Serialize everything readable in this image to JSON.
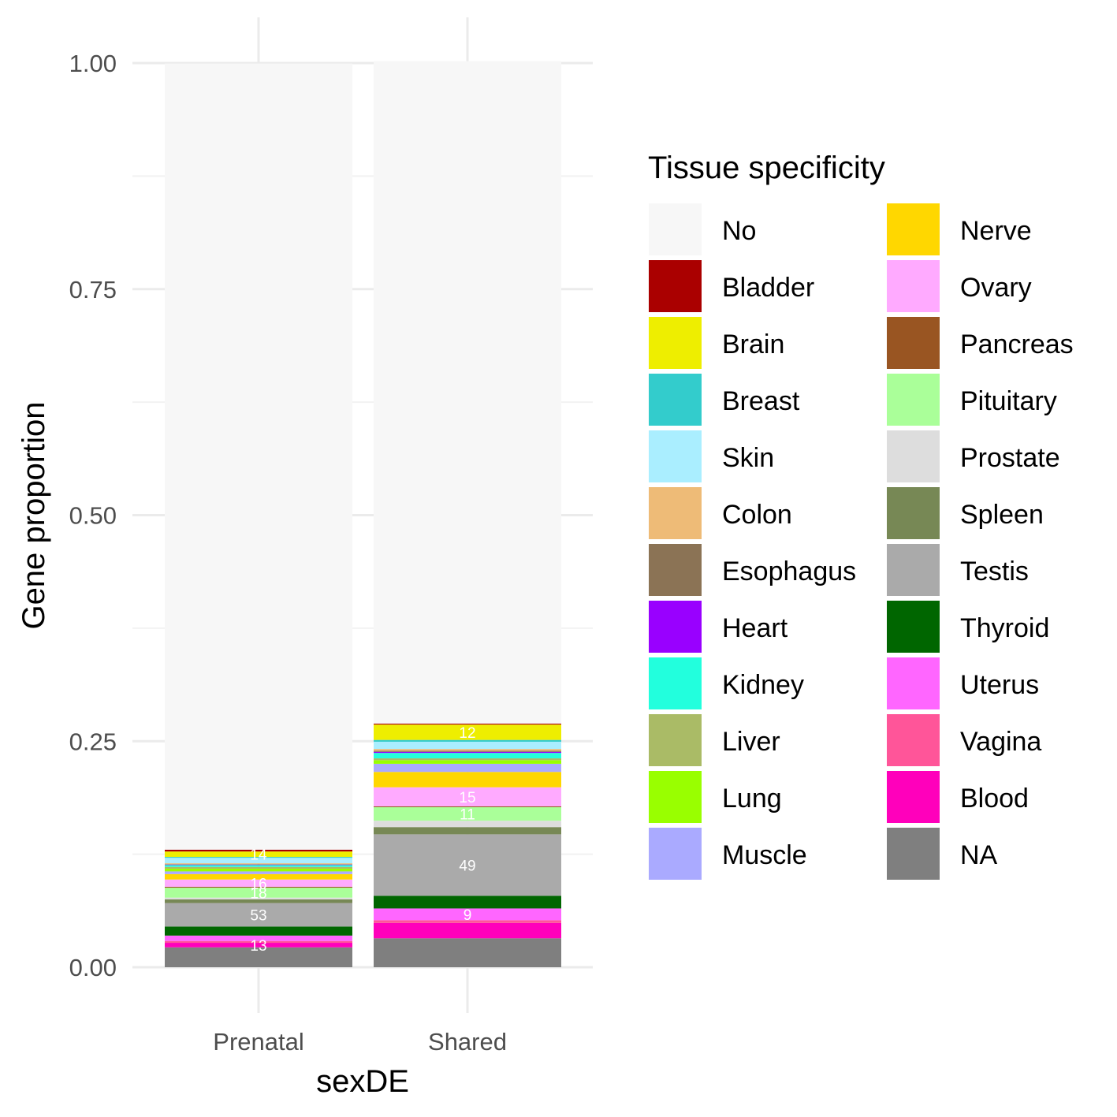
{
  "chart_data": {
    "type": "bar",
    "stacked": true,
    "xlabel": "sexDE",
    "ylabel": "Gene proportion",
    "ylim": [
      0,
      1
    ],
    "yticks": [
      "0.00",
      "0.25",
      "0.50",
      "0.75",
      "1.00"
    ],
    "categories": [
      "Prenatal",
      "Shared"
    ],
    "legend": {
      "title": "Tissue specificity",
      "position": "right",
      "columns": 2
    },
    "grid": true,
    "series": [
      {
        "name": "NA",
        "color": "#7F7F7F",
        "values": [
          0.022,
          0.032
        ]
      },
      {
        "name": "Blood",
        "color": "#FF00BB",
        "values": [
          0.005,
          0.017
        ]
      },
      {
        "name": "Vagina",
        "color": "#FF5599",
        "values": [
          0.002,
          0.003
        ]
      },
      {
        "name": "Uterus",
        "color": "#FF66FF",
        "values": [
          0.006,
          0.013
        ]
      },
      {
        "name": "Thyroid",
        "color": "#006600",
        "values": [
          0.01,
          0.014
        ]
      },
      {
        "name": "Testis",
        "color": "#AAAAAA",
        "values": [
          0.026,
          0.068
        ]
      },
      {
        "name": "Spleen",
        "color": "#778855",
        "values": [
          0.004,
          0.008
        ]
      },
      {
        "name": "Prostate",
        "color": "#DDDDDD",
        "values": [
          0.002,
          0.007
        ]
      },
      {
        "name": "Pituitary",
        "color": "#AAFF99",
        "values": [
          0.011,
          0.015
        ]
      },
      {
        "name": "Pancreas",
        "color": "#995522",
        "values": [
          0.001,
          0.001
        ]
      },
      {
        "name": "Ovary",
        "color": "#FFAAFF",
        "values": [
          0.008,
          0.021
        ]
      },
      {
        "name": "Nerve",
        "color": "#FFD700",
        "values": [
          0.006,
          0.017
        ]
      },
      {
        "name": "Muscle",
        "color": "#AAAAFF",
        "values": [
          0.003,
          0.009
        ]
      },
      {
        "name": "Lung",
        "color": "#99FF00",
        "values": [
          0.003,
          0.004
        ]
      },
      {
        "name": "Liver",
        "color": "#AABB66",
        "values": [
          0.002,
          0.002
        ]
      },
      {
        "name": "Kidney",
        "color": "#22FFDD",
        "values": [
          0.002,
          0.006
        ]
      },
      {
        "name": "Heart",
        "color": "#9900FF",
        "values": [
          0.0005,
          0.0012
        ]
      },
      {
        "name": "Esophagus",
        "color": "#8B7355",
        "values": [
          0.0005,
          0.0012
        ]
      },
      {
        "name": "Colon",
        "color": "#EEBB77",
        "values": [
          0.001,
          0.002
        ]
      },
      {
        "name": "Skin",
        "color": "#AAEEFF",
        "values": [
          0.006,
          0.008
        ]
      },
      {
        "name": "Breast",
        "color": "#33CCCC",
        "values": [
          0.001,
          0.002
        ]
      },
      {
        "name": "Brain",
        "color": "#EEEE00",
        "values": [
          0.006,
          0.017
        ]
      },
      {
        "name": "Bladder",
        "color": "#AA0000",
        "values": [
          0.002,
          0.001
        ]
      },
      {
        "name": "No",
        "color": "#F7F7F7",
        "values": [
          0.8695,
          0.7326
        ]
      }
    ],
    "legend_order": [
      "No",
      "Bladder",
      "Brain",
      "Breast",
      "Skin",
      "Colon",
      "Esophagus",
      "Heart",
      "Kidney",
      "Liver",
      "Lung",
      "Muscle",
      "Nerve",
      "Ovary",
      "Pancreas",
      "Pituitary",
      "Prostate",
      "Spleen",
      "Testis",
      "Thyroid",
      "Uterus",
      "Vagina",
      "Blood",
      "NA"
    ],
    "annotations": [
      {
        "category": "Prenatal",
        "series": "Blood",
        "label": "13"
      },
      {
        "category": "Prenatal",
        "series": "Testis",
        "label": "53"
      },
      {
        "category": "Prenatal",
        "series": "Pituitary",
        "label": "18"
      },
      {
        "category": "Prenatal",
        "series": "Ovary",
        "label": "16"
      },
      {
        "category": "Prenatal",
        "series": "Brain",
        "label": "14"
      },
      {
        "category": "Shared",
        "series": "Uterus",
        "label": "9"
      },
      {
        "category": "Shared",
        "series": "Testis",
        "label": "49"
      },
      {
        "category": "Shared",
        "series": "Pituitary",
        "label": "11"
      },
      {
        "category": "Shared",
        "series": "Ovary",
        "label": "15"
      },
      {
        "category": "Shared",
        "series": "Brain",
        "label": "12"
      }
    ]
  }
}
